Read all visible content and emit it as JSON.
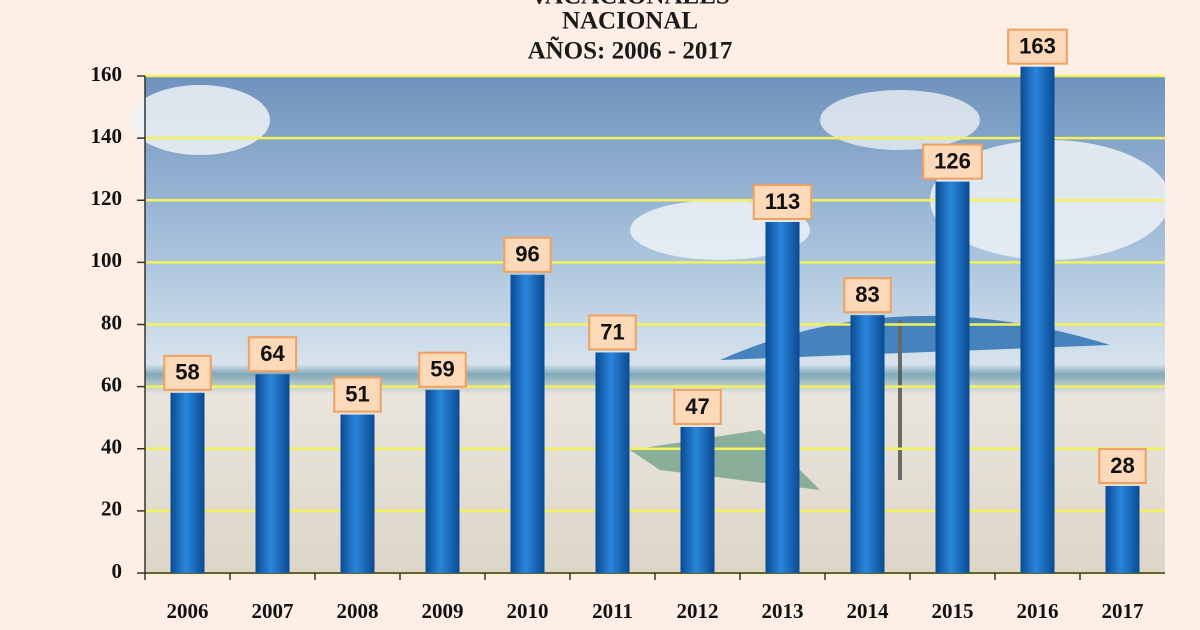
{
  "chart_data": {
    "type": "bar",
    "title": [
      "VACACIONALES",
      "NACIONAL",
      "AÑOS: 2006 - 2017"
    ],
    "categories": [
      "2006",
      "2007",
      "2008",
      "2009",
      "2010",
      "2011",
      "2012",
      "2013",
      "2014",
      "2015",
      "2016",
      "2017"
    ],
    "values": [
      58,
      64,
      51,
      59,
      96,
      71,
      47,
      113,
      83,
      126,
      163,
      28
    ],
    "color": "#1565b8",
    "ylim": [
      0,
      160
    ],
    "yticks": [
      0,
      20,
      40,
      60,
      80,
      100,
      120,
      140,
      160
    ],
    "grid": true,
    "grid_color": "#f2f25a"
  }
}
